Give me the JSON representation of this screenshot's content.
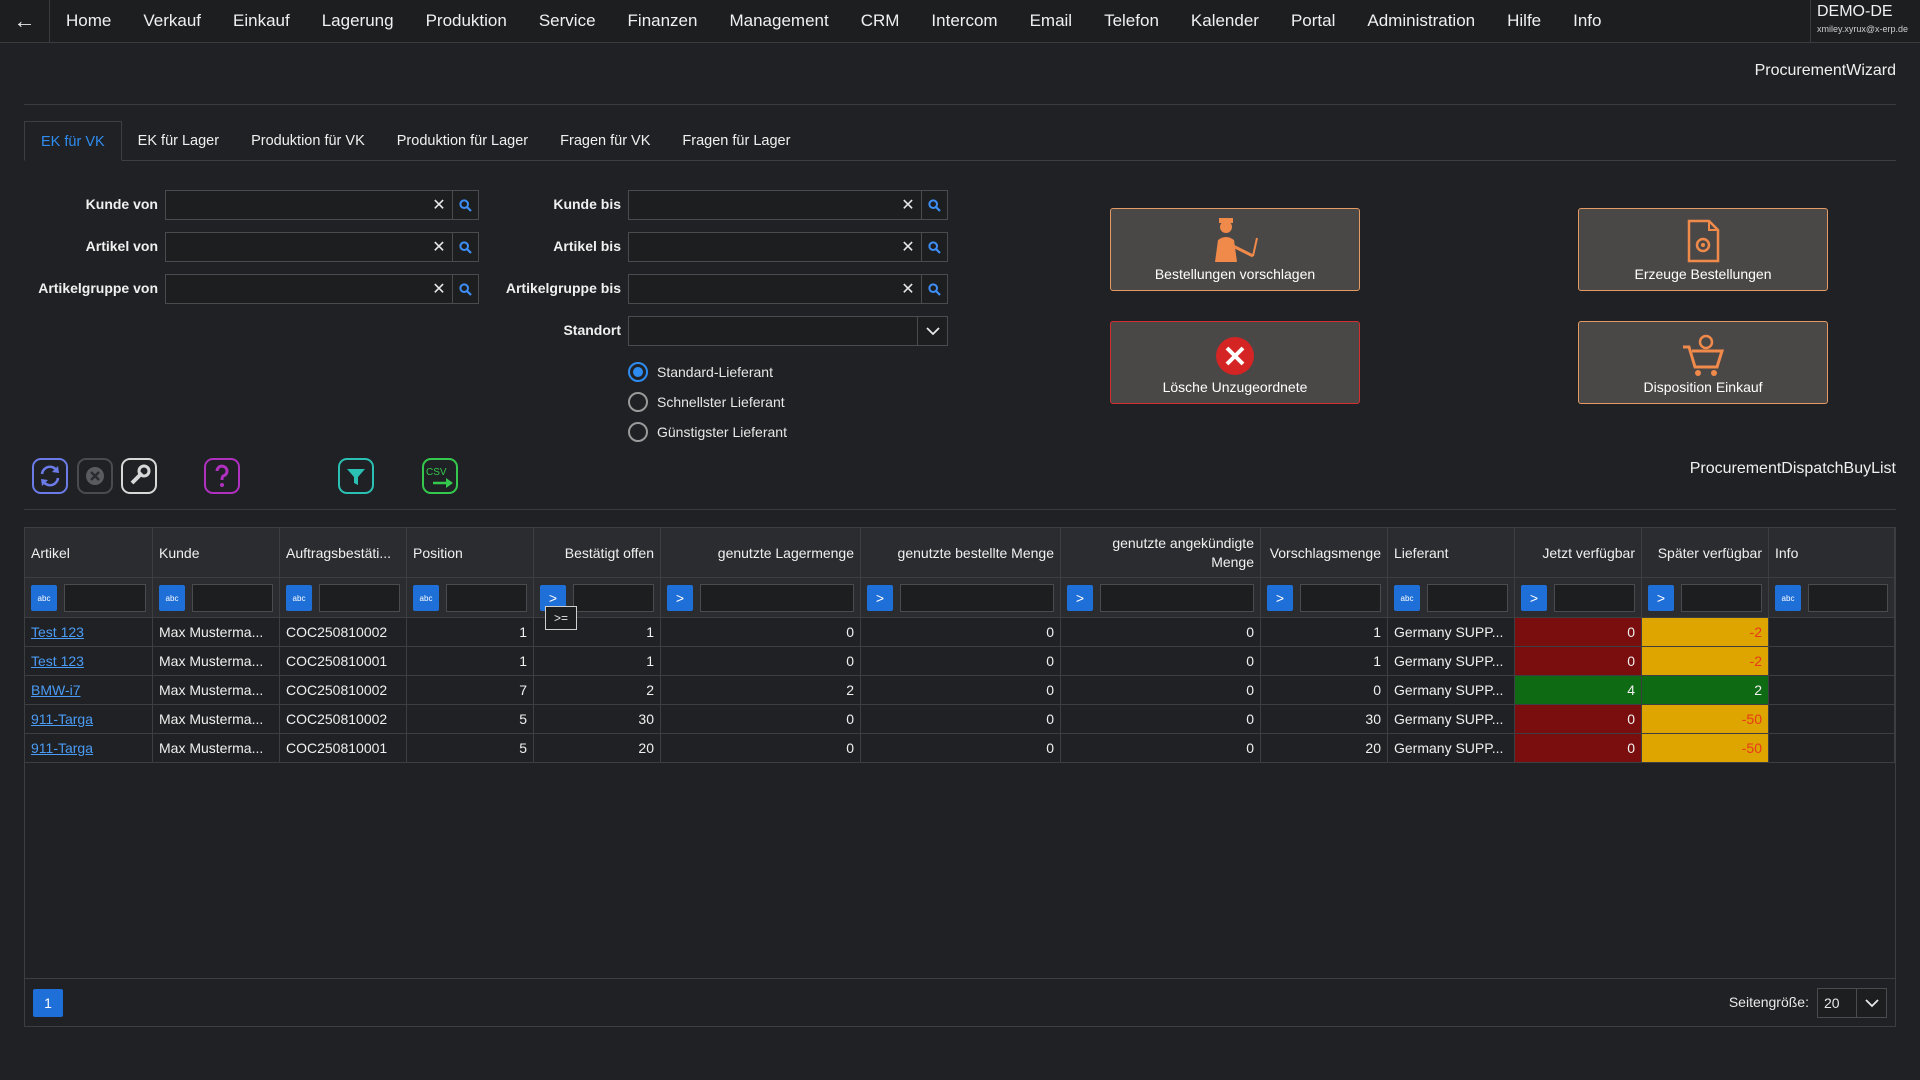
{
  "nav": {
    "back_icon": "←",
    "items": [
      "Home",
      "Verkauf",
      "Einkauf",
      "Lagerung",
      "Produktion",
      "Service",
      "Finanzen",
      "Management",
      "CRM",
      "Intercom",
      "Email",
      "Telefon",
      "Kalender",
      "Portal",
      "Administration",
      "Hilfe",
      "Info"
    ],
    "tenant": "DEMO-DE",
    "user": "xmiley.xyrux@x-erp.de"
  },
  "wizard_title": "ProcurementWizard",
  "tabs": [
    "EK für VK",
    "EK für Lager",
    "Produktion für VK",
    "Produktion für Lager",
    "Fragen für VK",
    "Fragen für Lager"
  ],
  "active_tab": 0,
  "filters": {
    "kunde_von": "Kunde von",
    "artikel_von": "Artikel von",
    "artikelgruppe_von": "Artikelgruppe von",
    "kunde_bis": "Kunde bis",
    "artikel_bis": "Artikel bis",
    "artikelgruppe_bis": "Artikelgruppe bis",
    "standort": "Standort",
    "clear_icon": "✕"
  },
  "supplier_options": [
    {
      "label": "Standard-Lieferant",
      "checked": true
    },
    {
      "label": "Schnellster Lieferant",
      "checked": false
    },
    {
      "label": "Günstigster Lieferant",
      "checked": false
    }
  ],
  "actions": {
    "suggest": "Bestellungen vorschlagen",
    "create": "Erzeuge Bestellungen",
    "delete": "Lösche Unzugeordnete",
    "dispatch": "Disposition Einkauf"
  },
  "toolbar": {
    "refresh_icon": "refresh-icon",
    "cancel_icon": "cancel-icon",
    "tools_icon": "wrench-icon",
    "help_icon": "help-icon",
    "filter_icon": "filter-icon",
    "csv_icon": "csv-export-icon",
    "csv_label": "CSV"
  },
  "list_title": "ProcurementDispatchBuyList",
  "grid": {
    "columns": [
      "Artikel",
      "Kunde",
      "Auftragsbestäti...",
      "Position",
      "Bestätigt offen",
      "genutzte Lagermenge",
      "genutzte bestellte Menge",
      "genutzte angekündigte Menge",
      "Vorschlagsmenge",
      "Lieferant",
      "Jetzt verfügbar",
      "Später verfügbar",
      "Info"
    ],
    "filter_type_text": "abc",
    "filter_type_num": ">",
    "tooltip": ">=",
    "rows": [
      [
        "Test 123",
        "Max Musterma...",
        "COC250810002",
        "1",
        "1",
        "0",
        "0",
        "0",
        "1",
        "Germany SUPP...",
        "0",
        "-2",
        ""
      ],
      [
        "Test 123",
        "Max Musterma...",
        "COC250810001",
        "1",
        "1",
        "0",
        "0",
        "0",
        "1",
        "Germany SUPP...",
        "0",
        "-2",
        ""
      ],
      [
        "BMW-i7",
        "Max Musterma...",
        "COC250810002",
        "7",
        "2",
        "2",
        "0",
        "0",
        "0",
        "Germany SUPP...",
        "4",
        "2",
        ""
      ],
      [
        "911-Targa",
        "Max Musterma...",
        "COC250810002",
        "5",
        "30",
        "0",
        "0",
        "0",
        "30",
        "Germany SUPP...",
        "0",
        "-50",
        ""
      ],
      [
        "911-Targa",
        "Max Musterma...",
        "COC250810001",
        "5",
        "20",
        "0",
        "0",
        "0",
        "20",
        "Germany SUPP...",
        "0",
        "-50",
        ""
      ]
    ],
    "status_colors": {
      "now_negative": "#7a0d0d",
      "now_positive": "#0f6a14",
      "later_warning": "#dea400",
      "later_positive": "#0f6a14"
    }
  },
  "pager": {
    "page": "1",
    "size_label": "Seitengröße:",
    "size": "20"
  }
}
